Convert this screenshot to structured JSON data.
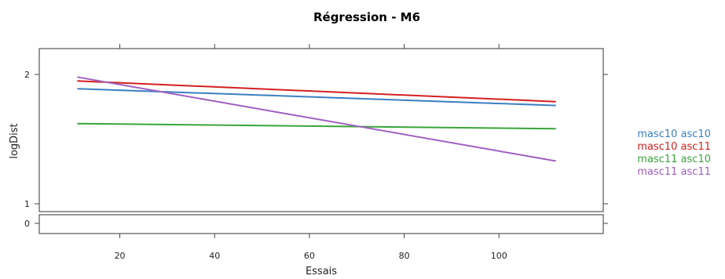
{
  "chart_data": {
    "type": "line",
    "title": "Régression - M6",
    "xlabel": "Essais",
    "ylabel": "logDist",
    "xlim": [
      3,
      122
    ],
    "ylim": [
      0,
      2.2
    ],
    "axis_break": {
      "between": [
        0,
        1
      ]
    },
    "x_ticks": [
      20,
      40,
      60,
      80,
      100
    ],
    "y_ticks": [
      0,
      1,
      2
    ],
    "grid": false,
    "legend_position": "right",
    "series": [
      {
        "name": "masc10 asc10",
        "color": "#3a7fc1",
        "x": [
          11,
          112
        ],
        "y": [
          1.89,
          1.76
        ]
      },
      {
        "name": "masc10 asc11",
        "color": "#d42020",
        "x": [
          11,
          112
        ],
        "y": [
          1.95,
          1.79
        ]
      },
      {
        "name": "masc11 asc10",
        "color": "#3aa53a",
        "x": [
          11,
          112
        ],
        "y": [
          1.62,
          1.58
        ]
      },
      {
        "name": "masc11 asc11",
        "color": "#a060c0",
        "x": [
          11,
          112
        ],
        "y": [
          1.98,
          1.33
        ]
      }
    ]
  }
}
